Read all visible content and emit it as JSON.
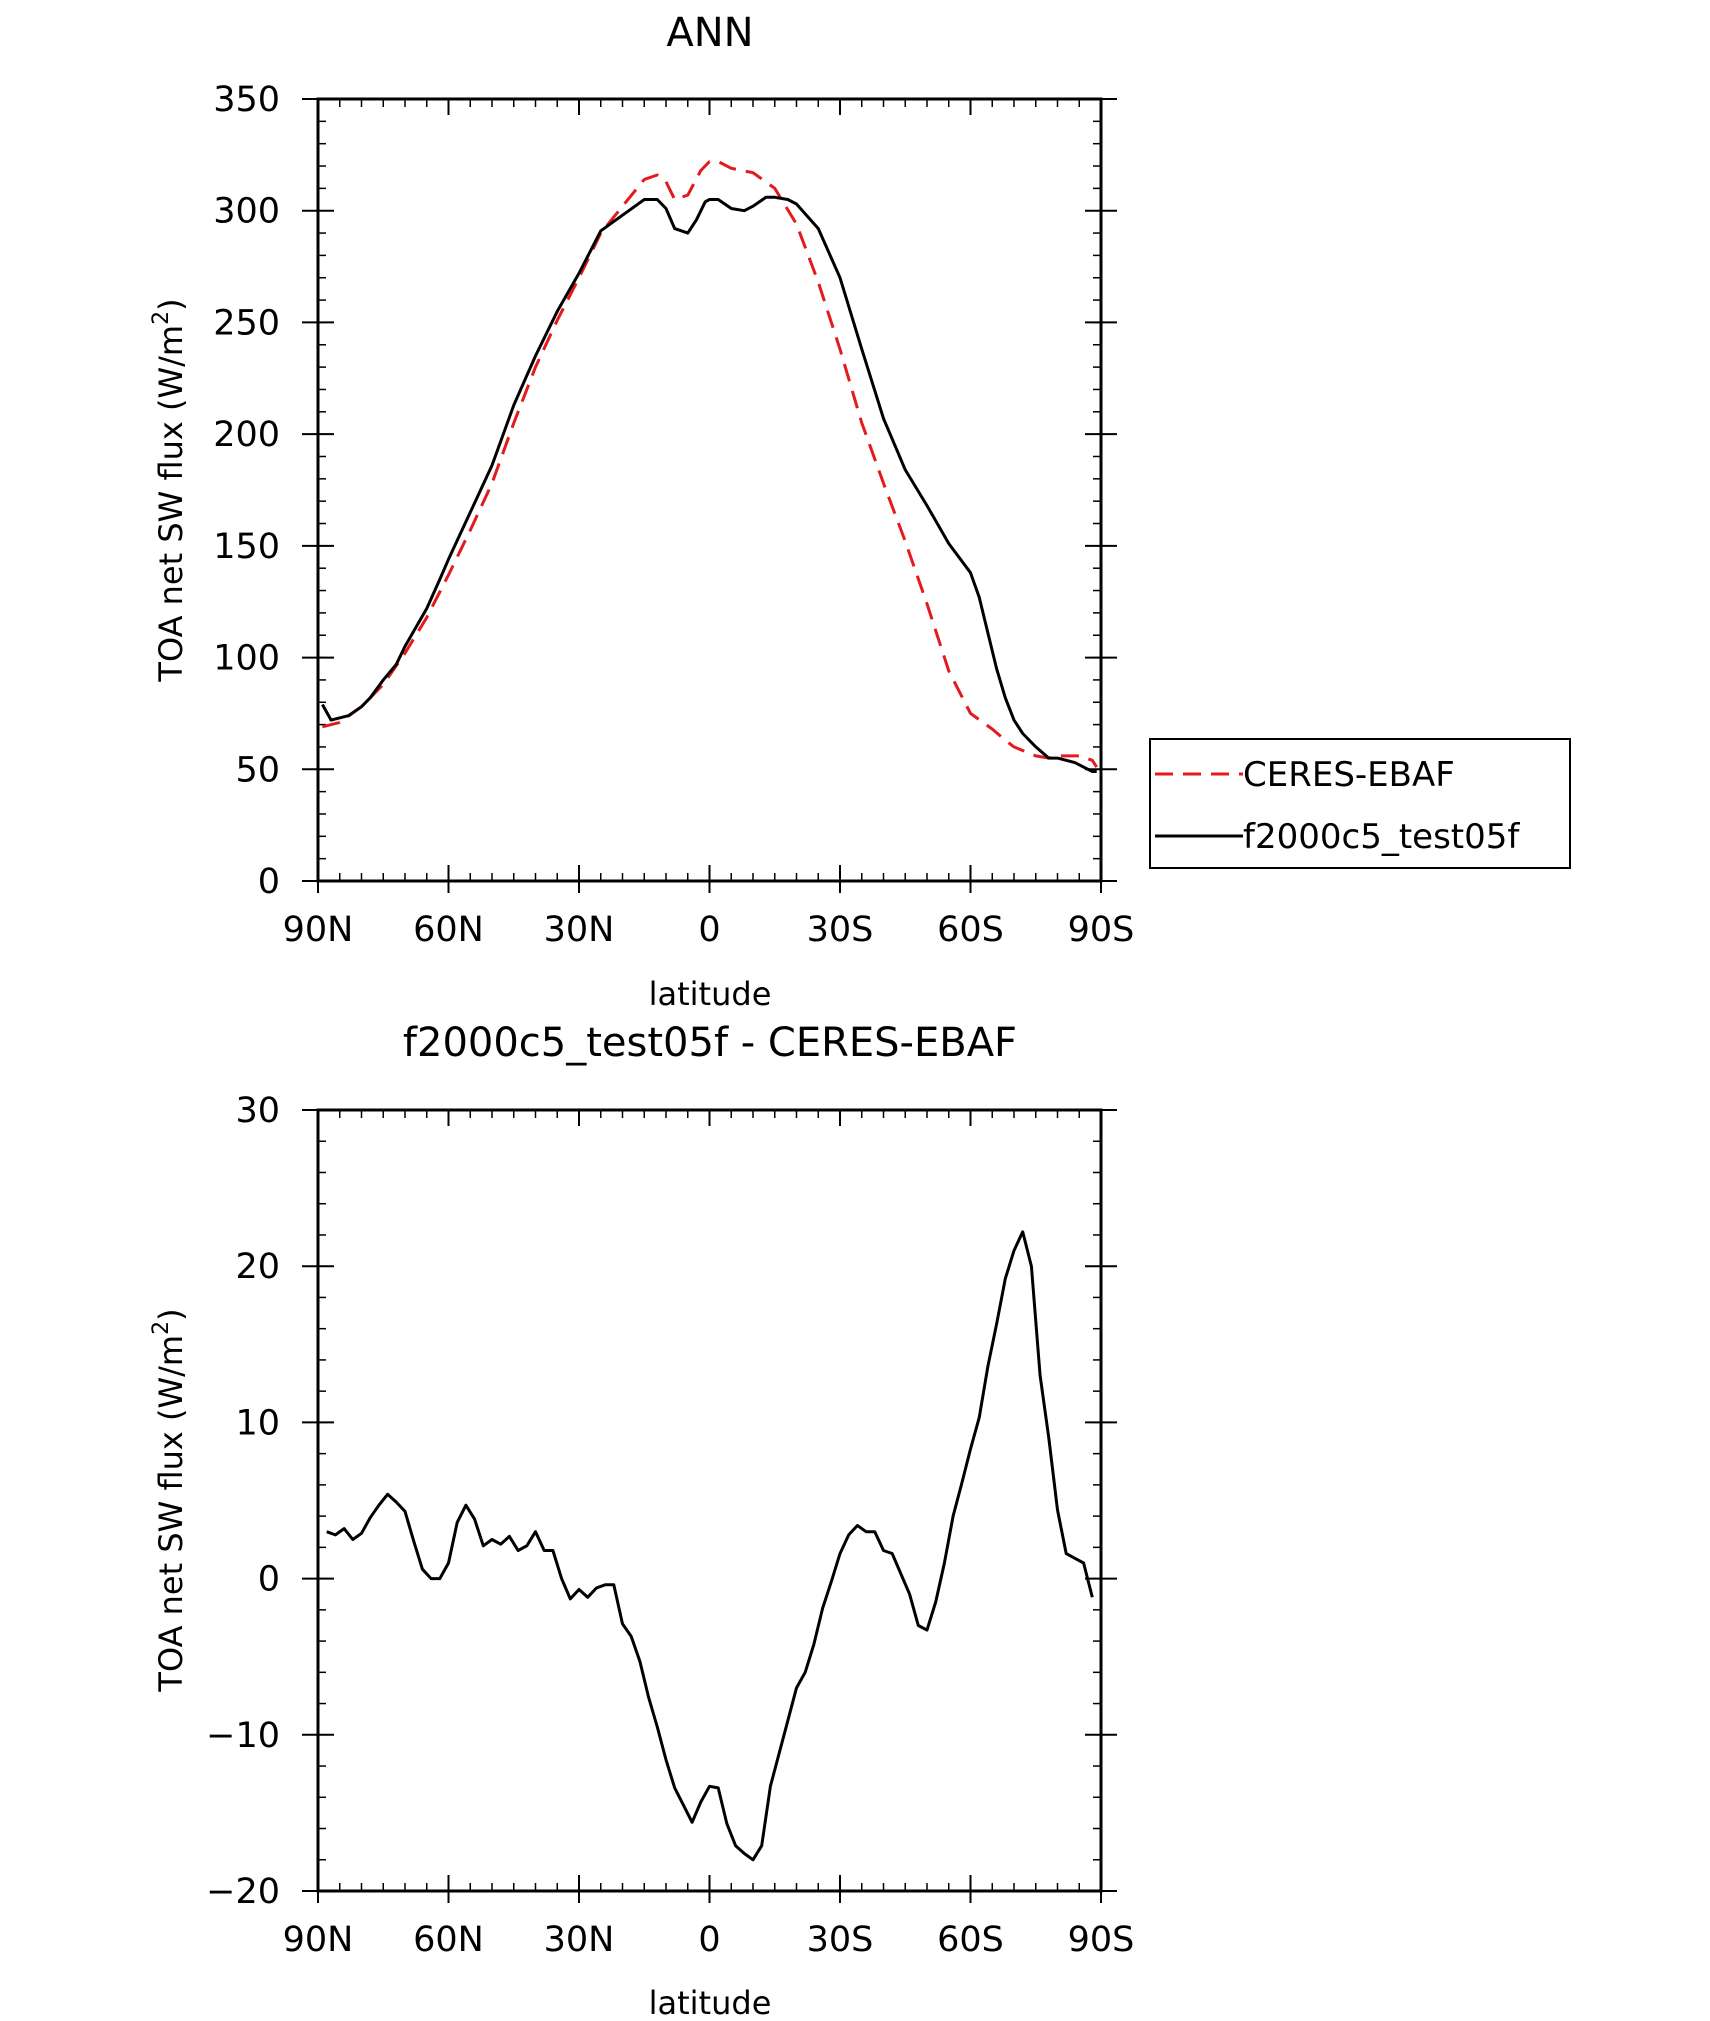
{
  "chart_data": [
    {
      "type": "line",
      "title": "ANN",
      "xlabel": "latitude",
      "ylabel": "TOA net SW flux (W/m",
      "ylabel_sup": "2",
      "ylabel_close": ")",
      "xlim": [
        90,
        -90
      ],
      "ylim": [
        0,
        350
      ],
      "xticks": [
        90,
        60,
        30,
        0,
        -30,
        -60,
        -90
      ],
      "xtick_labels": [
        "90N",
        "60N",
        "30N",
        "0",
        "30S",
        "60S",
        "90S"
      ],
      "yticks": [
        0,
        50,
        100,
        150,
        200,
        250,
        300,
        350
      ],
      "ytick_labels": [
        "0",
        "50",
        "100",
        "150",
        "200",
        "250",
        "300",
        "350"
      ],
      "legend": {
        "placement": "right",
        "entries": [
          "CERES-EBAF",
          "f2000c5_test05f"
        ]
      },
      "series": [
        {
          "name": "CERES-EBAF",
          "color": "#e41a1c",
          "dash": "dashed",
          "x": [
            89,
            85,
            80,
            75,
            70,
            65,
            60,
            55,
            50,
            45,
            40,
            35,
            30,
            25,
            20,
            15,
            12,
            10,
            8,
            5,
            2,
            0,
            -2,
            -5,
            -10,
            -15,
            -20,
            -25,
            -30,
            -35,
            -40,
            -45,
            -50,
            -55,
            -60,
            -65,
            -68,
            -70,
            -75,
            -78,
            -80,
            -85,
            -88,
            -89
          ],
          "values": [
            69,
            71,
            78,
            88,
            102,
            118,
            137,
            157,
            178,
            205,
            230,
            251,
            270,
            290,
            302,
            314,
            316,
            313,
            305,
            307,
            318,
            322,
            322,
            319,
            317,
            310,
            294,
            268,
            238,
            205,
            178,
            152,
            124,
            94,
            75,
            68,
            63,
            60,
            56,
            55,
            56,
            56,
            54,
            51
          ]
        },
        {
          "name": "f2000c5_test05f",
          "color": "#000000",
          "dash": "solid",
          "x": [
            89,
            87,
            83,
            80,
            78,
            75,
            72,
            70,
            65,
            62,
            60,
            55,
            50,
            45,
            40,
            35,
            30,
            25,
            20,
            15,
            12,
            10,
            8,
            5,
            3,
            1,
            0,
            -2,
            -5,
            -8,
            -10,
            -13,
            -15,
            -18,
            -20,
            -25,
            -30,
            -35,
            -40,
            -45,
            -50,
            -55,
            -60,
            -62,
            -64,
            -66,
            -68,
            -70,
            -72,
            -75,
            -78,
            -80,
            -84,
            -86,
            -88,
            -89
          ],
          "values": [
            79,
            72,
            74,
            78,
            82,
            90,
            97,
            105,
            122,
            135,
            144,
            165,
            186,
            213,
            235,
            255,
            272,
            291,
            298,
            305,
            305,
            301,
            292,
            290,
            296,
            304,
            305,
            305,
            301,
            300,
            302,
            306,
            306,
            305,
            303,
            292,
            270,
            238,
            207,
            184,
            168,
            151,
            138,
            127,
            111,
            95,
            82,
            72,
            66,
            60,
            55,
            55,
            53,
            51,
            49,
            49
          ]
        }
      ]
    },
    {
      "type": "line",
      "title": "f2000c5_test05f - CERES-EBAF",
      "xlabel": "latitude",
      "ylabel": "TOA net SW flux (W/m",
      "ylabel_sup": "2",
      "ylabel_close": ")",
      "xlim": [
        90,
        -90
      ],
      "ylim": [
        -20,
        30
      ],
      "xticks": [
        90,
        60,
        30,
        0,
        -30,
        -60,
        -90
      ],
      "xtick_labels": [
        "90N",
        "60N",
        "30N",
        "0",
        "30S",
        "60S",
        "90S"
      ],
      "yticks": [
        -20,
        -10,
        0,
        10,
        20,
        30
      ],
      "ytick_labels": [
        "−20",
        "−10",
        "0",
        "10",
        "20",
        "30"
      ],
      "series": [
        {
          "name": "f2000c5_test05f - CERES-EBAF",
          "color": "#000000",
          "dash": "solid",
          "x": [
            88,
            86,
            84,
            82,
            80,
            78,
            76,
            74,
            72,
            70,
            68,
            66,
            64,
            62,
            60,
            58,
            56,
            54,
            52,
            50,
            48,
            46,
            44,
            42,
            40,
            38,
            36,
            34,
            32,
            30,
            28,
            26,
            24,
            22,
            20,
            18,
            16,
            14,
            12,
            10,
            8,
            6,
            4,
            2,
            0,
            -2,
            -4,
            -6,
            -8,
            -10,
            -12,
            -14,
            -16,
            -18,
            -20,
            -22,
            -24,
            -26,
            -28,
            -30,
            -32,
            -34,
            -36,
            -38,
            -40,
            -42,
            -44,
            -46,
            -48,
            -50,
            -52,
            -54,
            -56,
            -58,
            -60,
            -62,
            -64,
            -66,
            -68,
            -70,
            -72,
            -74,
            -76,
            -78,
            -80,
            -82,
            -84,
            -86,
            -88
          ],
          "values": [
            3.0,
            2.8,
            3.2,
            2.5,
            2.9,
            3.9,
            4.7,
            5.4,
            4.9,
            4.3,
            2.4,
            0.6,
            0.0,
            0.0,
            1.0,
            3.6,
            4.7,
            3.8,
            2.1,
            2.5,
            2.2,
            2.7,
            1.8,
            2.1,
            3.0,
            1.8,
            1.8,
            0.0,
            -1.3,
            -0.7,
            -1.2,
            -0.6,
            -0.4,
            -0.4,
            -2.9,
            -3.7,
            -5.3,
            -7.6,
            -9.5,
            -11.6,
            -13.4,
            -14.5,
            -15.6,
            -14.3,
            -13.3,
            -13.4,
            -15.7,
            -17.1,
            -17.6,
            -18.0,
            -17.1,
            -13.3,
            -11.2,
            -9.1,
            -7.0,
            -6.0,
            -4.2,
            -1.9,
            -0.2,
            1.6,
            2.8,
            3.4,
            3.0,
            3.0,
            1.8,
            1.6,
            0.3,
            -1.0,
            -3.0,
            -3.3,
            -1.5,
            1.0,
            4.0,
            6.1,
            8.3,
            10.3,
            13.6,
            16.3,
            19.2,
            21.0,
            22.2,
            20.0,
            13.0,
            9.0,
            4.4,
            1.6,
            1.3,
            1.0,
            -1.2
          ]
        }
      ]
    }
  ]
}
